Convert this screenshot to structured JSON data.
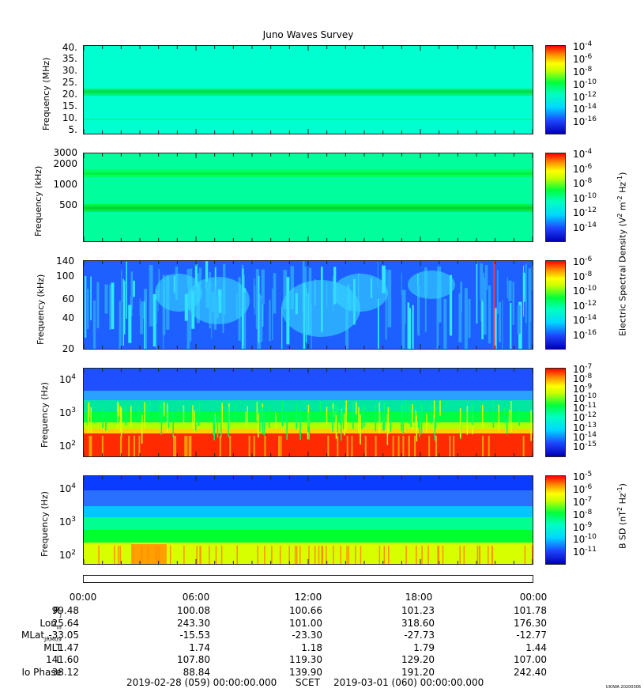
{
  "title": "Juno Waves Survey",
  "colors": {
    "dark_blue": "#0000c8",
    "blue": "#1e5aff",
    "cyan": "#00ffd8",
    "green": "#00ff4a",
    "yellow": "#ffff00",
    "orange": "#ff8c00",
    "red": "#ff0000"
  },
  "panels": [
    {
      "ylabel": "Frequency (MHz)",
      "yticks": [
        "40.",
        "35.",
        "30.",
        "25.",
        "20.",
        "15.",
        "10.",
        "5."
      ],
      "cbar_ticks": [
        "-4",
        "-6",
        "-8",
        "-10",
        "-12",
        "-14",
        "-16"
      ]
    },
    {
      "ylabel": "Frequency (kHz)",
      "yticks": [
        "3000",
        "2000",
        "1000",
        "500"
      ],
      "cbar_ticks": [
        "-4",
        "-6",
        "-8",
        "-10",
        "-12",
        "-14"
      ]
    },
    {
      "ylabel": "Frequency (kHz)",
      "yticks": [
        "140",
        "100",
        "60",
        "40",
        "20"
      ],
      "cbar_ticks": [
        "-6",
        "-8",
        "-10",
        "-12",
        "-14",
        "-16"
      ]
    },
    {
      "ylabel": "Frequency (Hz)",
      "yticks": [
        "4",
        "3",
        "2"
      ],
      "cbar_ticks": [
        "-7",
        "-8",
        "-9",
        "-10",
        "-11",
        "-12",
        "-13",
        "-14",
        "-15"
      ]
    },
    {
      "ylabel": "Frequency (Hz)",
      "yticks": [
        "4",
        "3",
        "2"
      ],
      "cbar_ticks": [
        "-5",
        "-6",
        "-7",
        "-8",
        "-9",
        "-10",
        "-11"
      ]
    }
  ],
  "cbar_base": "10",
  "esd_label": {
    "pre": "Electric Spectral Density (V",
    "sup1": "2",
    "mid": " m",
    "sup2": "-2",
    "mid2": " Hz",
    "sup3": "-1",
    "post": ")"
  },
  "bsd_label": {
    "pre": "B SD (nT",
    "sup1": "2",
    "mid": " Hz",
    "sup2": "-1",
    "post": ")"
  },
  "chart_data": {
    "type": "heatmap",
    "title": "Juno Waves Survey",
    "x_ticks": [
      "00:00",
      "06:00",
      "12:00",
      "18:00",
      "00:00"
    ],
    "ephemeris": [
      {
        "label": "R",
        "sub": "J",
        "values": [
          "99.48",
          "100.08",
          "100.66",
          "101.23",
          "101.78"
        ]
      },
      {
        "label": "Lon",
        "sub": "III",
        "values": [
          "25.64",
          "243.30",
          "101.00",
          "318.60",
          "176.30"
        ]
      },
      {
        "label": "MLat",
        "sub": "JRM09",
        "values": [
          "-33.05",
          "-15.53",
          "-23.30",
          "-27.73",
          "-12.77"
        ]
      },
      {
        "label": "MLT",
        "sub": "",
        "values": [
          "1.47",
          "1.74",
          "1.18",
          "1.79",
          "1.44"
        ]
      },
      {
        "label": "L",
        "sub": "",
        "values": [
          "141.60",
          "107.80",
          "119.30",
          "129.20",
          "107.00"
        ]
      },
      {
        "label": "Io Phase",
        "sub": "",
        "values": [
          "38.12",
          "88.84",
          "139.90",
          "191.20",
          "242.40"
        ]
      }
    ],
    "panels": [
      {
        "quantity": "Electric Spectral Density",
        "y_unit": "MHz",
        "ylim": [
          3,
          41
        ],
        "clim_log10": [
          -17,
          -4
        ],
        "features": [
          "narrowband emission near 21 MHz"
        ]
      },
      {
        "quantity": "Electric Spectral Density",
        "y_unit": "kHz",
        "ylim": [
          140,
          3000
        ],
        "y_scale": "log",
        "clim_log10": [
          -15,
          -4
        ],
        "features": [
          "bands near 450 kHz and 1600 kHz"
        ]
      },
      {
        "quantity": "Electric Spectral Density",
        "y_unit": "kHz",
        "ylim": [
          20,
          140
        ],
        "y_scale": "log",
        "clim_log10": [
          -17,
          -6
        ]
      },
      {
        "quantity": "Electric Spectral Density",
        "y_unit": "Hz",
        "ylim": [
          50,
          20000
        ],
        "y_scale": "log",
        "clim_log10": [
          -15,
          -7
        ]
      },
      {
        "quantity": "B SD",
        "y_unit": "Hz",
        "ylim": [
          50,
          20000
        ],
        "y_scale": "log",
        "clim_log10": [
          -11,
          -4.5
        ]
      }
    ]
  },
  "footer": {
    "start": "2019-02-28 (059) 00:00:00.000",
    "scet": "SCET",
    "end": "2019-03-01 (060) 00:00:00.000"
  },
  "stamp": "UIOWA 20200306"
}
